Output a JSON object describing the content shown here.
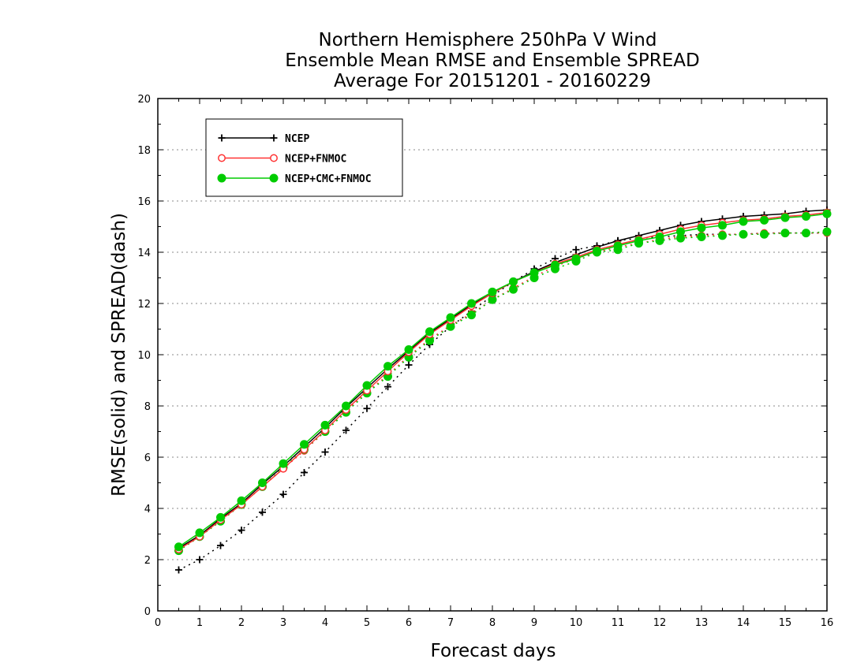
{
  "chart_data": {
    "type": "line",
    "title": [
      "Northern Hemisphere 250hPa V Wind",
      "Ensemble Mean RMSE and Ensemble SPREAD",
      "Average For 20151201 - 20160229"
    ],
    "xlabel": "Forecast days",
    "ylabel": "RMSE(solid) and SPREAD(dash)",
    "xlim": [
      0,
      16
    ],
    "ylim": [
      0,
      20
    ],
    "xticks": [
      "0",
      "1",
      "2",
      "3",
      "4",
      "5",
      "6",
      "7",
      "8",
      "9",
      "10",
      "11",
      "12",
      "13",
      "14",
      "15",
      "16"
    ],
    "yticks": [
      "0",
      "2",
      "4",
      "6",
      "8",
      "10",
      "12",
      "14",
      "16",
      "18",
      "20"
    ],
    "grid": true,
    "legend_position": "top-left",
    "x": [
      0.5,
      1,
      1.5,
      2,
      2.5,
      3,
      3.5,
      4,
      4.5,
      5,
      5.5,
      6,
      6.5,
      7,
      7.5,
      8,
      8.5,
      9,
      9.5,
      10,
      10.5,
      11,
      11.5,
      12,
      12.5,
      13,
      13.5,
      14,
      14.5,
      15,
      15.5,
      16
    ],
    "series": [
      {
        "name": "NCEP",
        "kind": "rmse",
        "color": "#000000",
        "marker": "plus",
        "values": [
          2.45,
          2.95,
          3.6,
          4.2,
          4.95,
          5.65,
          6.4,
          7.15,
          7.95,
          8.7,
          9.45,
          10.15,
          10.85,
          11.4,
          11.95,
          12.4,
          12.85,
          13.25,
          13.6,
          13.9,
          14.2,
          14.45,
          14.65,
          14.85,
          15.05,
          15.2,
          15.3,
          15.4,
          15.45,
          15.5,
          15.6,
          15.65
        ]
      },
      {
        "name": "NCEP+FNMOC",
        "kind": "rmse",
        "color": "#ff3333",
        "marker": "circle-open",
        "values": [
          2.4,
          2.9,
          3.55,
          4.15,
          4.85,
          5.55,
          6.3,
          7.05,
          7.85,
          8.6,
          9.35,
          10.1,
          10.8,
          11.35,
          11.9,
          12.4,
          12.85,
          13.2,
          13.55,
          13.8,
          14.1,
          14.3,
          14.5,
          14.7,
          14.9,
          15.05,
          15.15,
          15.25,
          15.3,
          15.4,
          15.45,
          15.55
        ]
      },
      {
        "name": "NCEP+CMC+FNMOC",
        "kind": "rmse",
        "color": "#00cc00",
        "marker": "circle-filled",
        "values": [
          2.5,
          3.05,
          3.65,
          4.3,
          5.0,
          5.75,
          6.5,
          7.25,
          8.0,
          8.8,
          9.55,
          10.2,
          10.9,
          11.45,
          12.0,
          12.45,
          12.85,
          13.2,
          13.5,
          13.75,
          14.05,
          14.25,
          14.45,
          14.6,
          14.8,
          14.95,
          15.05,
          15.2,
          15.25,
          15.35,
          15.4,
          15.5
        ]
      }
    ],
    "spread_series": [
      {
        "name": "NCEP",
        "kind": "spread",
        "color": "#000000",
        "marker": "plus",
        "values": [
          1.6,
          2.0,
          2.55,
          3.15,
          3.85,
          4.55,
          5.4,
          6.2,
          7.05,
          7.9,
          8.75,
          9.6,
          10.4,
          11.1,
          11.7,
          12.3,
          12.85,
          13.35,
          13.75,
          14.1,
          14.25,
          14.45,
          14.55,
          14.6,
          14.65,
          14.7,
          14.7,
          14.7,
          14.75,
          14.75,
          14.75,
          14.75
        ]
      },
      {
        "name": "NCEP+FNMOC",
        "kind": "spread",
        "color": "#ff3333",
        "marker": "circle-open",
        "values": [
          2.35,
          2.9,
          3.5,
          4.15,
          4.85,
          5.55,
          6.25,
          7.0,
          7.8,
          8.55,
          9.2,
          9.95,
          10.6,
          11.15,
          11.6,
          12.15,
          12.6,
          13.05,
          13.45,
          13.75,
          14.0,
          14.2,
          14.35,
          14.5,
          14.6,
          14.65,
          14.7,
          14.7,
          14.75,
          14.75,
          14.75,
          14.75
        ]
      },
      {
        "name": "NCEP+CMC+FNMOC",
        "kind": "spread",
        "color": "#00cc00",
        "marker": "circle-filled",
        "values": [
          2.35,
          2.9,
          3.5,
          4.15,
          4.85,
          5.6,
          6.3,
          7.0,
          7.75,
          8.5,
          9.15,
          9.9,
          10.55,
          11.1,
          11.55,
          12.15,
          12.55,
          13.0,
          13.35,
          13.65,
          14.0,
          14.1,
          14.35,
          14.45,
          14.55,
          14.6,
          14.65,
          14.7,
          14.7,
          14.75,
          14.75,
          14.8
        ]
      }
    ]
  }
}
